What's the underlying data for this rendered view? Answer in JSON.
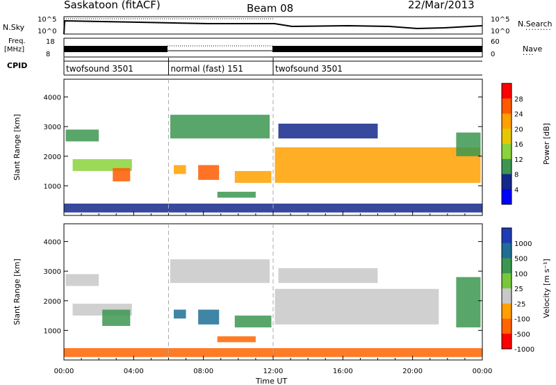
{
  "header": {
    "title": "Saskatoon (fitACF)",
    "beam": "Beam 08",
    "date": "22/Mar/2013"
  },
  "top_panels": {
    "nsky_label": "N.Sky",
    "nsearch_label": "N.Search",
    "freq_label_1": "Freq.",
    "freq_label_2": "[MHz]",
    "nave_label": "Nave",
    "cpid_label": "CPID",
    "nsky_ticks": [
      "10^5",
      "10^0"
    ],
    "nsearch_ticks": [
      "10^5",
      "10^0"
    ],
    "freq_ticks": [
      "18",
      "8"
    ],
    "nave_ticks": [
      "60",
      "0"
    ],
    "cpid_segments": [
      {
        "label": "twofsound 3501",
        "start_hour": 0,
        "end_hour": 6
      },
      {
        "label": "normal (fast) 151",
        "start_hour": 6,
        "end_hour": 12
      },
      {
        "label": "twofsound 3501",
        "start_hour": 12,
        "end_hour": 24
      }
    ]
  },
  "x_axis": {
    "label": "Time UT",
    "ticks": [
      "00:00",
      "04:00",
      "08:00",
      "12:00",
      "16:00",
      "20:00",
      "00:00"
    ]
  },
  "chart_data": [
    {
      "type": "heatmap",
      "title": "",
      "xlabel": "Time UT",
      "ylabel": "Slant Range [km]",
      "xlim": [
        0,
        24
      ],
      "ylim": [
        0,
        4600
      ],
      "y_ticks": [
        1000,
        2000,
        3000,
        4000
      ],
      "colorbar_label": "Power [dB]",
      "colorbar_ticks": [
        "28",
        "24",
        "20",
        "16",
        "12",
        "8",
        "4"
      ],
      "colorbar_colors": [
        "#ff0000",
        "#ff5a00",
        "#ffa000",
        "#e6c800",
        "#8cd23c",
        "#3c9650",
        "#14288c",
        "#0000ff"
      ],
      "echo_regions": [
        {
          "t_start": 0.1,
          "t_end": 2.0,
          "range_low": 2500,
          "range_high": 2900,
          "level": 8
        },
        {
          "t_start": 0.5,
          "t_end": 3.9,
          "range_low": 1500,
          "range_high": 1900,
          "level": 12
        },
        {
          "t_start": 2.8,
          "t_end": 3.8,
          "range_low": 1150,
          "range_high": 1600,
          "level": 24
        },
        {
          "t_start": 6.1,
          "t_end": 11.8,
          "range_low": 2600,
          "range_high": 3400,
          "level": 8
        },
        {
          "t_start": 6.3,
          "t_end": 7.0,
          "range_low": 1400,
          "range_high": 1700,
          "level": 20
        },
        {
          "t_start": 7.7,
          "t_end": 8.9,
          "range_low": 1200,
          "range_high": 1700,
          "level": 26
        },
        {
          "t_start": 9.8,
          "t_end": 11.9,
          "range_low": 1100,
          "range_high": 1500,
          "level": 20
        },
        {
          "t_start": 8.8,
          "t_end": 11.0,
          "range_low": 600,
          "range_high": 800,
          "level": 8
        },
        {
          "t_start": 12.3,
          "t_end": 18.0,
          "range_low": 2600,
          "range_high": 3100,
          "level": 6
        },
        {
          "t_start": 12.1,
          "t_end": 23.9,
          "range_low": 1100,
          "range_high": 2300,
          "level": 20
        },
        {
          "t_start": 22.5,
          "t_end": 23.9,
          "range_low": 2000,
          "range_high": 2800,
          "level": 10
        },
        {
          "t_start": 0,
          "t_end": 24,
          "range_low": 100,
          "range_high": 400,
          "level": 6
        }
      ]
    },
    {
      "type": "heatmap",
      "title": "",
      "xlabel": "Time UT",
      "ylabel": "Slant Range [km]",
      "xlim": [
        0,
        24
      ],
      "ylim": [
        0,
        4600
      ],
      "y_ticks": [
        1000,
        2000,
        3000,
        4000
      ],
      "colorbar_label": "Velocity [m s⁻¹]",
      "colorbar_ticks": [
        "1000",
        "500",
        "100",
        "25",
        "-25",
        "-100",
        "-500",
        "-1000"
      ],
      "colorbar_colors": [
        "#1e3cb4",
        "#1e6e96",
        "#3c9650",
        "#78c83c",
        "#c8c8c8",
        "#ffa000",
        "#ff6400",
        "#ff0000"
      ],
      "echo_regions": [
        {
          "t_start": 0.1,
          "t_end": 2.0,
          "range_low": 2500,
          "range_high": 2900,
          "level": 0
        },
        {
          "t_start": 0.5,
          "t_end": 3.9,
          "range_low": 1500,
          "range_high": 1900,
          "level": 0
        },
        {
          "t_start": 2.2,
          "t_end": 3.8,
          "range_low": 1150,
          "range_high": 1700,
          "level": 100
        },
        {
          "t_start": 6.1,
          "t_end": 11.8,
          "range_low": 2600,
          "range_high": 3400,
          "level": 0
        },
        {
          "t_start": 6.3,
          "t_end": 7.0,
          "range_low": 1400,
          "range_high": 1700,
          "level": 500
        },
        {
          "t_start": 7.7,
          "t_end": 8.9,
          "range_low": 1200,
          "range_high": 1700,
          "level": 500
        },
        {
          "t_start": 9.8,
          "t_end": 11.9,
          "range_low": 1100,
          "range_high": 1500,
          "level": 100
        },
        {
          "t_start": 8.8,
          "t_end": 11.0,
          "range_low": 600,
          "range_high": 800,
          "level": -100
        },
        {
          "t_start": 12.3,
          "t_end": 18.0,
          "range_low": 2600,
          "range_high": 3100,
          "level": 0
        },
        {
          "t_start": 12.1,
          "t_end": 21.5,
          "range_low": 1200,
          "range_high": 2400,
          "level": 0
        },
        {
          "t_start": 22.5,
          "t_end": 23.9,
          "range_low": 1100,
          "range_high": 2800,
          "level": 100
        },
        {
          "t_start": 0,
          "t_end": 24,
          "range_low": 100,
          "range_high": 400,
          "level": -100
        }
      ]
    }
  ]
}
